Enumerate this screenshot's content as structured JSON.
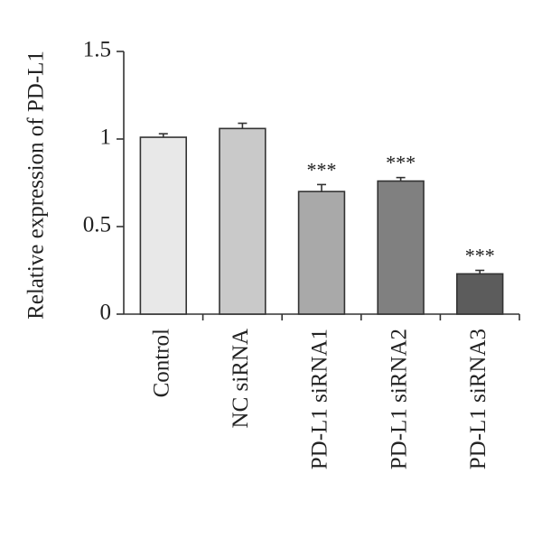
{
  "chart_data": {
    "type": "bar",
    "y_label": "Relative expression of PD-L1",
    "categories": [
      "Control",
      "NC siRNA",
      "PD-L1 siRNA1",
      "PD-L1 siRNA2",
      "PD-L1 siRNA3"
    ],
    "values": [
      1.01,
      1.06,
      0.7,
      0.76,
      0.23
    ],
    "errors": [
      0.02,
      0.03,
      0.04,
      0.02,
      0.02
    ],
    "colors": [
      "#e8e8e8",
      "#c9c9c9",
      "#a9a9a9",
      "#808080",
      "#5c5c5c"
    ],
    "value_annotations": [
      null,
      null,
      "***",
      "***",
      "***"
    ],
    "ylim": [
      0,
      1.5
    ],
    "yticks": [
      0,
      0.5,
      1,
      1.5
    ]
  }
}
